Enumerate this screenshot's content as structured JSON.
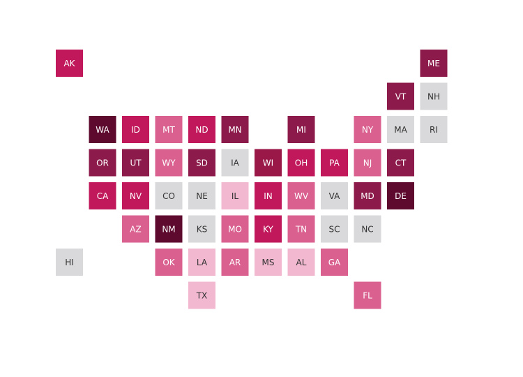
{
  "tiles": [
    {
      "label": "AK",
      "color": "#c0185a"
    },
    {
      "label": "ME",
      "color": "#8c1a4a"
    },
    {
      "label": "VT",
      "color": "#8c1a4a"
    },
    {
      "label": "NH",
      "color": "#d9d9db"
    },
    {
      "label": "WA",
      "color": "#5e0a2e"
    },
    {
      "label": "ID",
      "color": "#c0185a"
    },
    {
      "label": "MT",
      "color": "#d9608f"
    },
    {
      "label": "ND",
      "color": "#c0185a"
    },
    {
      "label": "MN",
      "color": "#8c1a4a"
    },
    {
      "label": "MI",
      "color": "#8c1a4a"
    },
    {
      "label": "NY",
      "color": "#d9608f"
    },
    {
      "label": "MA",
      "color": "#d9d9db"
    },
    {
      "label": "RI",
      "color": "#d9d9db"
    },
    {
      "label": "OR",
      "color": "#8c1a4a"
    },
    {
      "label": "UT",
      "color": "#8c1a4a"
    },
    {
      "label": "WY",
      "color": "#d9608f"
    },
    {
      "label": "SD",
      "color": "#8c1a4a"
    },
    {
      "label": "IA",
      "color": "#d9d9db"
    },
    {
      "label": "WI",
      "color": "#9a1848"
    },
    {
      "label": "OH",
      "color": "#c0185a"
    },
    {
      "label": "PA",
      "color": "#c0185a"
    },
    {
      "label": "NJ",
      "color": "#d9608f"
    },
    {
      "label": "CT",
      "color": "#8c1a4a"
    },
    {
      "label": "CA",
      "color": "#c0185a"
    },
    {
      "label": "NV",
      "color": "#c0185a"
    },
    {
      "label": "CO",
      "color": "#d9d9db"
    },
    {
      "label": "NE",
      "color": "#d9d9db"
    },
    {
      "label": "IL",
      "color": "#f2b8cf"
    },
    {
      "label": "IN",
      "color": "#c0185a"
    },
    {
      "label": "WV",
      "color": "#d9608f"
    },
    {
      "label": "VA",
      "color": "#d9d9db"
    },
    {
      "label": "MD",
      "color": "#8c1a4a"
    },
    {
      "label": "DE",
      "color": "#5e0a2e"
    },
    {
      "label": "AZ",
      "color": "#d9608f"
    },
    {
      "label": "NM",
      "color": "#5e0a2e"
    },
    {
      "label": "KS",
      "color": "#d9d9db"
    },
    {
      "label": "MO",
      "color": "#d9608f"
    },
    {
      "label": "KY",
      "color": "#c0185a"
    },
    {
      "label": "TN",
      "color": "#d9608f"
    },
    {
      "label": "SC",
      "color": "#d9d9db"
    },
    {
      "label": "NC",
      "color": "#d9d9db"
    },
    {
      "label": "HI",
      "color": "#d9d9db"
    },
    {
      "label": "OK",
      "color": "#d9608f"
    },
    {
      "label": "LA",
      "color": "#f2b8cf"
    },
    {
      "label": "AR",
      "color": "#d9608f"
    },
    {
      "label": "MS",
      "color": "#f2b8cf"
    },
    {
      "label": "AL",
      "color": "#f2b8cf"
    },
    {
      "label": "GA",
      "color": "#d9608f"
    },
    {
      "label": "TX",
      "color": "#f2b8cf"
    },
    {
      "label": "FL",
      "color": "#d9608f"
    }
  ]
}
